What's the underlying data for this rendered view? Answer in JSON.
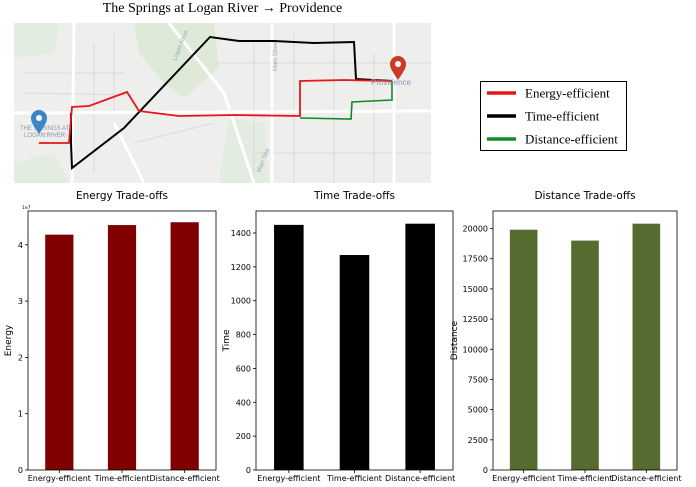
{
  "page_title": "The Springs at Logan River → Providence",
  "map": {
    "origin_label_line1": "THE SPRINGS AT",
    "origin_label_line2": "LOGAN RIVER",
    "destination_label": "Providence",
    "street_labels": [
      "Logan River",
      "Main Street",
      "Main Stre"
    ],
    "colors": {
      "background": "#eeeeec",
      "park": "#dfe9d8",
      "road": "#ffffff",
      "minor_road": "#d8d8d8",
      "energy": "#e8161a",
      "time": "#000000",
      "distance": "#118a2c",
      "origin_pin": "#3a86c8",
      "destination_pin": "#cc3b27"
    }
  },
  "legend": {
    "items": [
      {
        "label": "Energy-efficient",
        "color": "#e8161a"
      },
      {
        "label": "Time-efficient",
        "color": "#000000"
      },
      {
        "label": "Distance-efficient",
        "color": "#118a2c"
      }
    ]
  },
  "chart_data": [
    {
      "type": "bar",
      "title": "Energy Trade-offs",
      "ylabel": "Energy",
      "categories": [
        "Energy-efficient",
        "Time-efficient",
        "Distance-efficient"
      ],
      "values": [
        4.18,
        4.35,
        4.4
      ],
      "ylim": [
        0,
        4.6
      ],
      "yticks": [
        0,
        1,
        2,
        3,
        4
      ],
      "tick_labels": [
        "0",
        "1",
        "2",
        "3",
        "4"
      ],
      "multiplier_label": "1e7",
      "color": "#800000"
    },
    {
      "type": "bar",
      "title": "Time Trade-offs",
      "ylabel": "Time",
      "categories": [
        "Energy-efficient",
        "Time-efficient",
        "Distance-efficient"
      ],
      "values": [
        1448,
        1270,
        1455
      ],
      "ylim": [
        0,
        1530
      ],
      "yticks": [
        0,
        200,
        400,
        600,
        800,
        1000,
        1200,
        1400
      ],
      "tick_labels": [
        "0",
        "200",
        "400",
        "600",
        "800",
        "1000",
        "1200",
        "1400"
      ],
      "color": "#000000"
    },
    {
      "type": "bar",
      "title": "Distance Trade-offs",
      "ylabel": "Distance",
      "categories": [
        "Energy-efficient",
        "Time-efficient",
        "Distance-efficient"
      ],
      "values": [
        19900,
        19000,
        20400
      ],
      "ylim": [
        0,
        21450
      ],
      "yticks": [
        0,
        2500,
        5000,
        7500,
        10000,
        12500,
        15000,
        17500,
        20000
      ],
      "tick_labels": [
        "0",
        "2500",
        "5000",
        "7500",
        "10000",
        "12500",
        "15000",
        "17500",
        "20000"
      ],
      "color": "#556b2f"
    }
  ]
}
